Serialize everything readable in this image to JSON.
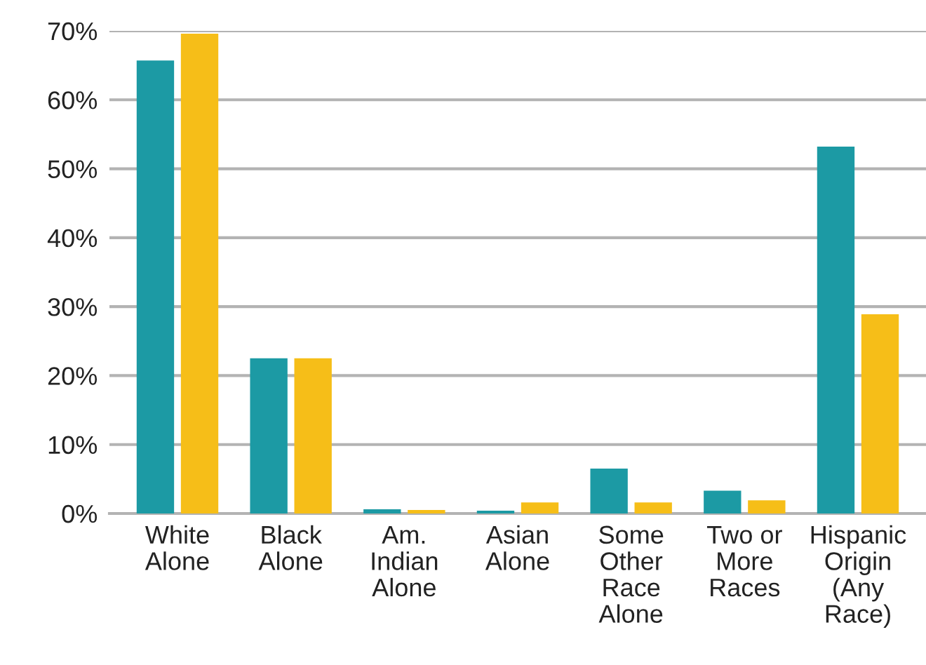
{
  "chart_data": {
    "type": "bar",
    "categories": [
      "White\nAlone",
      "Black\nAlone",
      "Am.\nIndian\nAlone",
      "Asian\nAlone",
      "Some\nOther\nRace\nAlone",
      "Two or\nMore\nRaces",
      "Hispanic\nOrigin\n(Any\nRace)"
    ],
    "series": [
      {
        "color": "#1c9aa4",
        "values": [
          65.7,
          22.5,
          0.6,
          0.4,
          6.5,
          3.3,
          53.2
        ]
      },
      {
        "color": "#f6be18",
        "values": [
          69.6,
          22.5,
          0.5,
          1.6,
          1.6,
          1.9,
          28.9
        ]
      }
    ],
    "ylim": [
      0,
      70
    ],
    "yticks": [
      {
        "value": 0,
        "label": "0%"
      },
      {
        "value": 10,
        "label": "10%"
      },
      {
        "value": 20,
        "label": "20%"
      },
      {
        "value": 30,
        "label": "30%"
      },
      {
        "value": 40,
        "label": "40%"
      },
      {
        "value": 50,
        "label": "50%"
      },
      {
        "value": 60,
        "label": "60%"
      },
      {
        "value": 70,
        "label": "70%"
      }
    ],
    "grid": "y"
  }
}
